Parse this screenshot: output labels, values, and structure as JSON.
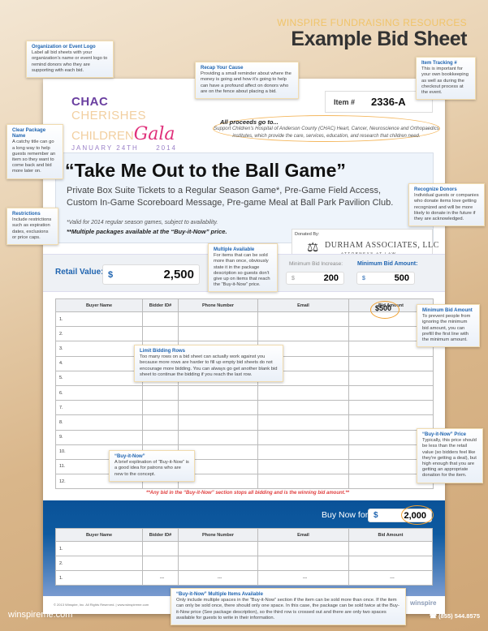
{
  "header": {
    "subtitle": "WINSPIRE FUNDRAISING RESOURCES",
    "title": "Example Bid Sheet"
  },
  "logo": {
    "chac": "CHAC",
    "cherishes": "CHERISHES",
    "children": "CHILDREN",
    "gala": "Gala",
    "date": "JANUARY 24TH",
    "year": "2014"
  },
  "item": {
    "label": "Item #",
    "value": "2336-A"
  },
  "proceeds": {
    "heading": "All proceeds go to...",
    "text": "Support Children's Hospital of Anderson County (CHAC) Heart, Cancer, Neuroscience and Orthopaedics institutes, which provide the care, services, education, and research that children need."
  },
  "package": {
    "title": "“Take Me Out to the Ball Game”",
    "description": "Private Box Suite Tickets to a Regular Season Game*, Pre-Game Field Access, Custom In-Game Scoreboard Message, Pre-game Meal at Ball Park Pavilion Club.",
    "valid_note": "*Valid for 2014 regular season games, subject to availability.",
    "multiple_note": "**Multiple packages available at the “Buy-it-Now” price."
  },
  "donor": {
    "label": "Donated By:",
    "name": "DURHAM ASSOCIATES, LLC",
    "subtitle": "ATTORNEYS AT LAW"
  },
  "values": {
    "retail_label": "Retail Value:",
    "currency": "$",
    "retail": "2,500",
    "min_increase_label": "Minimum Bid Increase:",
    "min_increase": "200",
    "min_amount_label": "Minimum Bid Amount:",
    "min_amount": "500"
  },
  "table": {
    "columns": [
      "Buyer Name",
      "Bidder ID#",
      "Phone Number",
      "Email",
      "Bid Amount"
    ],
    "rows": [
      "1.",
      "2.",
      "3.",
      "4.",
      "5.",
      "6.",
      "7.",
      "8.",
      "9.",
      "10.",
      "11.",
      "12."
    ],
    "first_bid": "$500"
  },
  "red_note": "**Any bid in the “Buy-it-Now” section stops all bidding and is the winning bid amount.**",
  "buy_now": {
    "label": "Buy Now for:",
    "currency": "$",
    "value": "2,000",
    "rows": [
      [
        "1.",
        "",
        "",
        "",
        ""
      ],
      [
        "2.",
        "",
        "",
        "",
        ""
      ],
      [
        "1.",
        "---",
        "---",
        "---",
        "---"
      ]
    ]
  },
  "footer": {
    "copyright": "© 2013 Winspire, Inc. All Rights Reserved.   |   www.winspireme.com",
    "logo": "winspire",
    "site": "winspireme.com",
    "phone": "☎ (855) 544.8575"
  },
  "callouts": [
    {
      "id": "org-logo",
      "title": "Organization or Event Logo",
      "text": "Label all bid sheets with your organization's name or event logo to remind donors who they are supporting with each bid."
    },
    {
      "id": "recap",
      "title": "Recap Your Cause",
      "text": "Providing a small reminder about where the money is going and how it's going to help can have a profound affect on donors who are on the fence about placing a bid."
    },
    {
      "id": "item-tracking",
      "title": "Item Tracking #",
      "text": "This is important for your own bookkeeping as well as during the checkout process at the event."
    },
    {
      "id": "clear-name",
      "title": "Clear Package Name",
      "text": "A catchy title can go a long way to help guests remember an item so they want to come back and bid more later on."
    },
    {
      "id": "recognize",
      "title": "Recognize Donors",
      "text": "Individual guests or companies who donate items love getting recognized and will be more likely to donate in the future if they are acknowledged."
    },
    {
      "id": "restrictions",
      "title": "Restrictions",
      "text": "Include restrictions such as expiration dates, exclusions or price caps."
    },
    {
      "id": "multiple",
      "title": "Multiple Available",
      "text": "For items that can be sold more than once, obviously state it in the package description so guests don't give up on items that reach the “Buy-it-Now” price."
    },
    {
      "id": "min-bid",
      "title": "Minimum Bid Amount",
      "text": "To prevent people from ignoring the minimum bid amount, you can prefill the first line with the minimum amount."
    },
    {
      "id": "limit-rows",
      "title": "Limit Bidding Rows",
      "text": "Too many rows on a bid sheet can actually work against you because more rows are harder to fill up empty bid sheets do not encourage more bidding. You can always go get another blank bid sheet to continue the bidding if you reach the last row."
    },
    {
      "id": "buy-it-now",
      "title": "“Buy-it-Now”",
      "text": "A brief explination of “Buy-it-Now” is a good idea for patrons who are new to the concept."
    },
    {
      "id": "bin-price",
      "title": "“Buy-it-Now” Price",
      "text": "Typically, this price should be less than the retail value (so bidders feel like they're getting a deal), but high enough that you are getting an appropriate donation for the item."
    },
    {
      "id": "bin-multiple",
      "title": "“Buy-it-Now” Multiple Items Available",
      "text": "Only include multiple spaces in the “Buy-it-Now” section if the item can be sold more than once. If the item can only be sold once, there should only one space. In this case, the package can be sold twice at the Buy-it-Now price (See package description), so the third row is crossed out and there are only two spaces available for guests to write in their information."
    }
  ],
  "colors": {
    "accent": "#1f64b0",
    "highlight": "#f0a030",
    "red": "#e04040",
    "band": "#0a5298"
  }
}
